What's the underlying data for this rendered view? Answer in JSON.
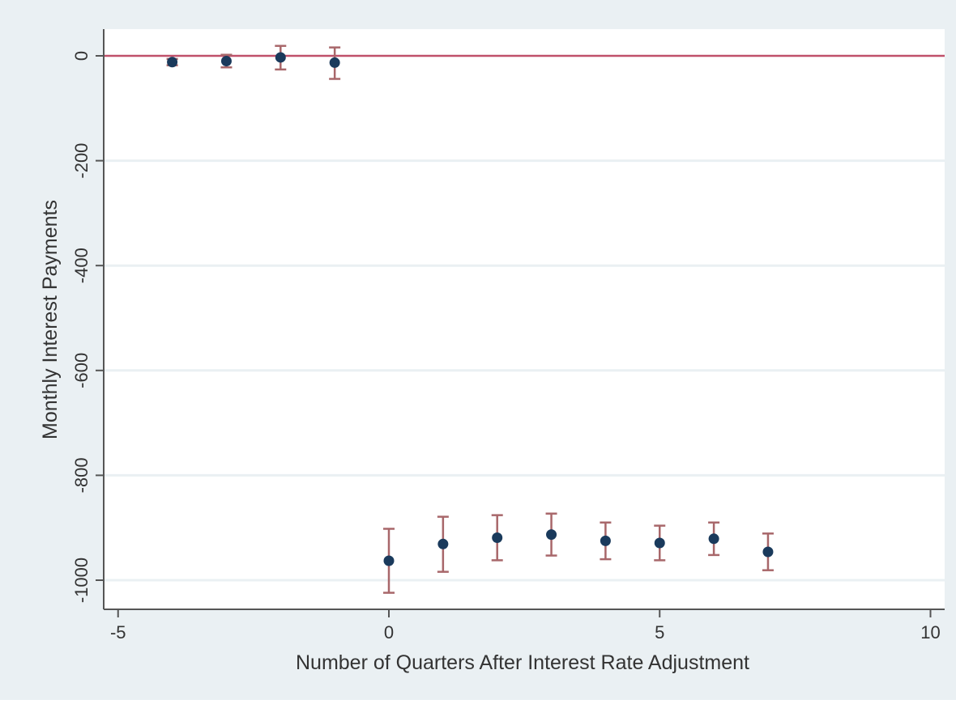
{
  "chart_data": {
    "type": "scatter",
    "title": "",
    "xlabel": "Number of Quarters After Interest Rate Adjustment",
    "ylabel": "Monthly Interest Payments",
    "xlim": [
      -5,
      10
    ],
    "ylim": [
      -1000,
      0
    ],
    "x_ticks": [
      -5,
      0,
      5,
      10
    ],
    "y_ticks": [
      0,
      -200,
      -400,
      -600,
      -800,
      -1000
    ],
    "x_tick_labels": [
      "-5",
      "0",
      "5",
      "10"
    ],
    "y_tick_labels": [
      "0",
      "-200",
      "-400",
      "-600",
      "-800",
      "-1000"
    ],
    "grid": "horizontal",
    "reference_line": {
      "y": 0,
      "color": "#c0506a"
    },
    "colors": {
      "outer_background": "#eaf0f3",
      "plot_background": "#ffffff",
      "gridline": "#eaf0f3",
      "point": "#1a3a5c",
      "error_bar": "#a8676a",
      "axis": "#555555"
    },
    "points": [
      {
        "x": -4,
        "y": -12,
        "lo": -18,
        "hi": -6
      },
      {
        "x": -3,
        "y": -10,
        "lo": -22,
        "hi": 2
      },
      {
        "x": -2,
        "y": -3,
        "lo": -26,
        "hi": 19
      },
      {
        "x": -1,
        "y": -13,
        "lo": -44,
        "hi": 16
      },
      {
        "x": 0,
        "y": -963,
        "lo": -1024,
        "hi": -902
      },
      {
        "x": 1,
        "y": -931,
        "lo": -984,
        "hi": -879
      },
      {
        "x": 2,
        "y": -919,
        "lo": -962,
        "hi": -876
      },
      {
        "x": 3,
        "y": -913,
        "lo": -953,
        "hi": -873
      },
      {
        "x": 4,
        "y": -925,
        "lo": -960,
        "hi": -890
      },
      {
        "x": 5,
        "y": -929,
        "lo": -962,
        "hi": -896
      },
      {
        "x": 6,
        "y": -921,
        "lo": -952,
        "hi": -890
      },
      {
        "x": 7,
        "y": -946,
        "lo": -981,
        "hi": -911
      }
    ]
  }
}
